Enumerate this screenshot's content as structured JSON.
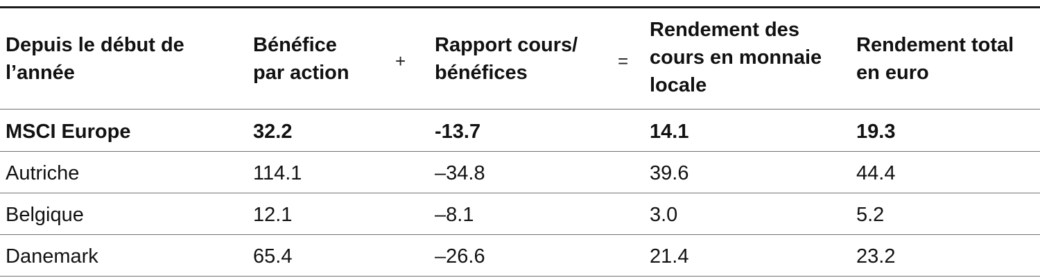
{
  "table": {
    "headers": {
      "period": [
        "Depuis le début de",
        "l’année"
      ],
      "eps": [
        "Bénéfice",
        "par action"
      ],
      "plus": "+",
      "pe": [
        "Rapport cours/",
        "bénéfices"
      ],
      "equals": "=",
      "local_return": [
        "Rendement des",
        "cours en monnaie",
        "locale"
      ],
      "total_return": [
        "Rendement total",
        "en euro"
      ]
    },
    "rows": [
      {
        "name": "MSCI Europe",
        "eps": "32.2",
        "pe": "-13.7",
        "local": "14.1",
        "total": "19.3"
      },
      {
        "name": "Autriche",
        "eps": "114.1",
        "pe": "–34.8",
        "local": "39.6",
        "total": "44.4"
      },
      {
        "name": "Belgique",
        "eps": "12.1",
        "pe": "–8.1",
        "local": "3.0",
        "total": "5.2"
      },
      {
        "name": "Danemark",
        "eps": "65.4",
        "pe": "–26.6",
        "local": "21.4",
        "total": "23.2"
      }
    ]
  }
}
